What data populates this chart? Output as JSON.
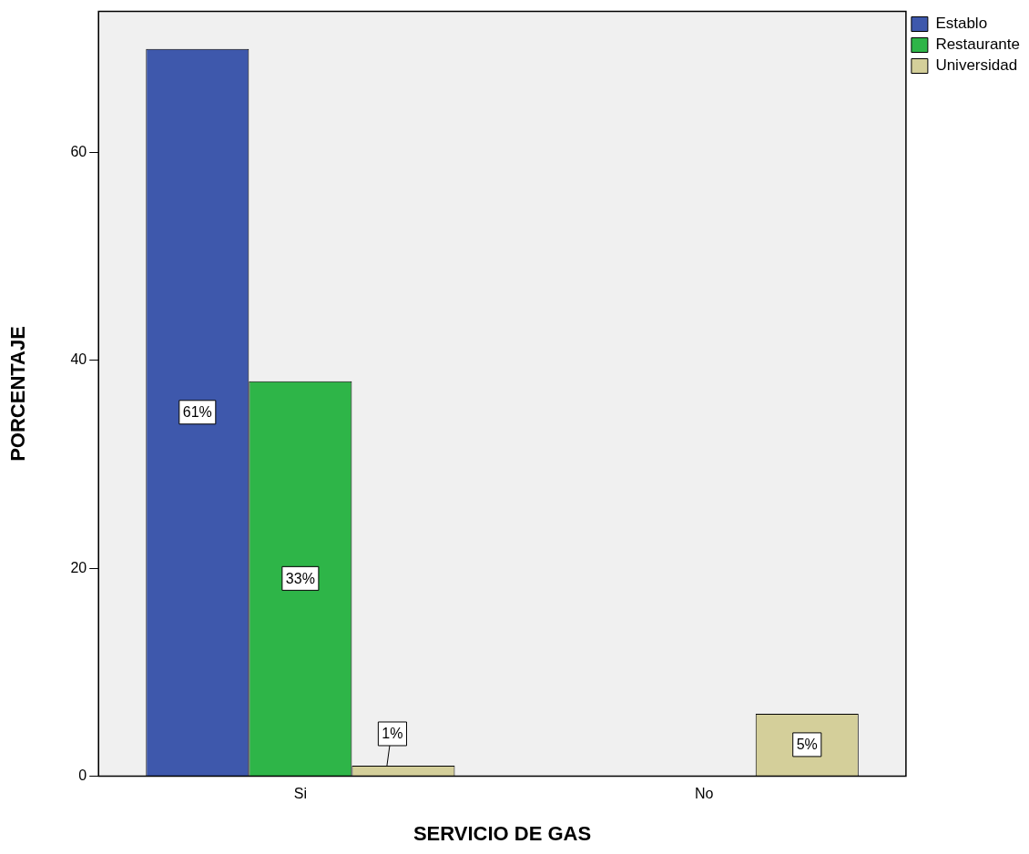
{
  "chart_data": {
    "type": "bar",
    "xlabel": "SERVICIO DE GAS",
    "ylabel": "PORCENTAJE",
    "categories": [
      "Si",
      "No"
    ],
    "series": [
      {
        "name": "Establo",
        "color": "#3e58ac",
        "values": [
          70,
          null
        ]
      },
      {
        "name": "Restaurante",
        "color": "#2eb548",
        "values": [
          38,
          null
        ]
      },
      {
        "name": "Universidad",
        "color": "#d4cf9a",
        "values": [
          1,
          6
        ]
      }
    ],
    "annotations": [
      "61%",
      "33%",
      {
        "text": "1%",
        "y": 1
      },
      "5%"
    ],
    "ylim": [
      0,
      73.6
    ],
    "yticks": [
      0,
      20,
      40,
      60
    ],
    "grid": false,
    "legend": "top right"
  }
}
